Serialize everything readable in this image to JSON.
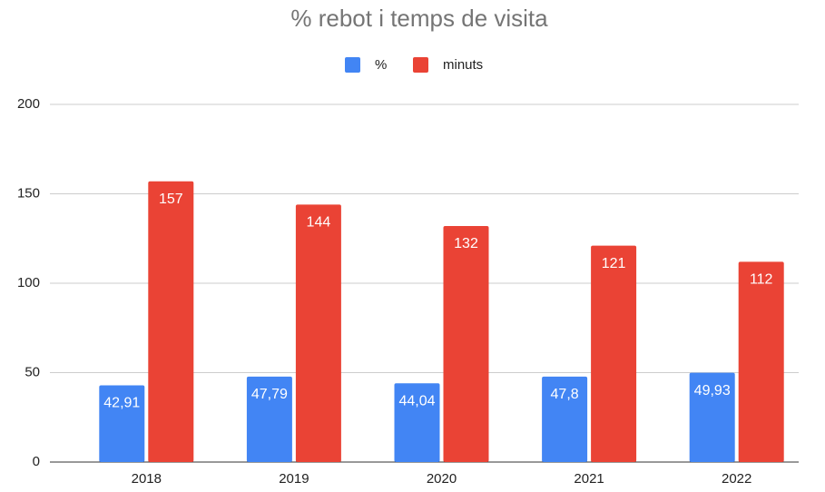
{
  "chart_data": {
    "type": "bar",
    "title": "% rebot i temps de visita",
    "categories": [
      "2018",
      "2019",
      "2020",
      "2021",
      "2022"
    ],
    "series": [
      {
        "name": "%",
        "color": "#4285f4",
        "values": [
          42.91,
          47.79,
          44.04,
          47.8,
          49.93
        ],
        "value_labels": [
          "42,91",
          "47,79",
          "44,04",
          "47,8",
          "49,93"
        ]
      },
      {
        "name": "minuts",
        "color": "#ea4335",
        "values": [
          157,
          144,
          132,
          121,
          112
        ]
      }
    ],
    "ylim": [
      0,
      200
    ],
    "yticks": [
      0,
      50,
      100,
      150,
      200
    ],
    "grid": true,
    "legend": "top"
  }
}
